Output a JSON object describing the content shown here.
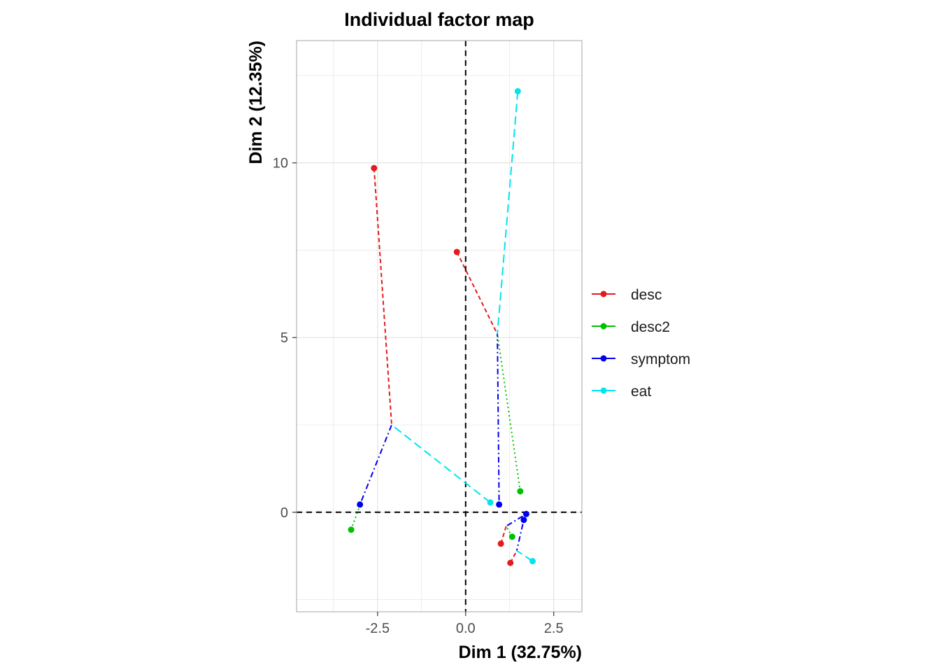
{
  "chart_data": {
    "type": "scatter",
    "title": "Individual factor map",
    "xlabel": "Dim 1 (32.75%)",
    "ylabel": "Dim 2 (12.35%)",
    "xlim": [
      -4.8,
      3.3
    ],
    "ylim": [
      -2.85,
      13.5
    ],
    "x_ticks": [
      -2.5,
      0.0,
      2.5
    ],
    "x_tick_labels": [
      "-2.5",
      "0.0",
      "2.5"
    ],
    "y_ticks": [
      0,
      5,
      10
    ],
    "y_tick_labels": [
      "0",
      "5",
      "10"
    ],
    "grid": true,
    "legend_position": "right",
    "reference_lines": {
      "x": 0,
      "y": 0
    },
    "series": [
      {
        "name": "desc",
        "color": "#e41a1c",
        "dash": "dashed",
        "points": [
          [
            -2.6,
            9.85
          ],
          [
            -0.25,
            7.45
          ],
          [
            1.0,
            -0.9
          ],
          [
            1.27,
            -1.45
          ]
        ],
        "centers": [
          [
            -2.1,
            2.5
          ],
          [
            0.9,
            5.1
          ],
          [
            1.15,
            -0.4
          ],
          [
            1.45,
            -1.1
          ]
        ]
      },
      {
        "name": "desc2",
        "color": "#00c000",
        "dash": "dotted",
        "points": [
          [
            -3.25,
            -0.5
          ],
          [
            1.55,
            0.6
          ],
          [
            1.32,
            -0.7
          ]
        ],
        "centers": [
          [
            -3.0,
            0.2
          ],
          [
            0.9,
            5.1
          ],
          [
            1.15,
            -0.4
          ]
        ]
      },
      {
        "name": "symptom",
        "color": "#0000ee",
        "dash": "dotdash",
        "points": [
          [
            -3.0,
            0.22
          ],
          [
            0.95,
            0.22
          ],
          [
            1.72,
            -0.05
          ],
          [
            1.65,
            -0.22
          ]
        ],
        "centers": [
          [
            -2.1,
            2.5
          ],
          [
            0.9,
            5.1
          ],
          [
            1.15,
            -0.4
          ],
          [
            1.45,
            -1.1
          ]
        ]
      },
      {
        "name": "eat",
        "color": "#00e5ee",
        "dash": "longdash",
        "points": [
          [
            1.48,
            12.05
          ],
          [
            0.7,
            0.28
          ],
          [
            1.9,
            -1.4
          ]
        ],
        "centers": [
          [
            0.9,
            5.1
          ],
          [
            -2.1,
            2.5
          ],
          [
            1.45,
            -1.1
          ]
        ]
      }
    ]
  }
}
